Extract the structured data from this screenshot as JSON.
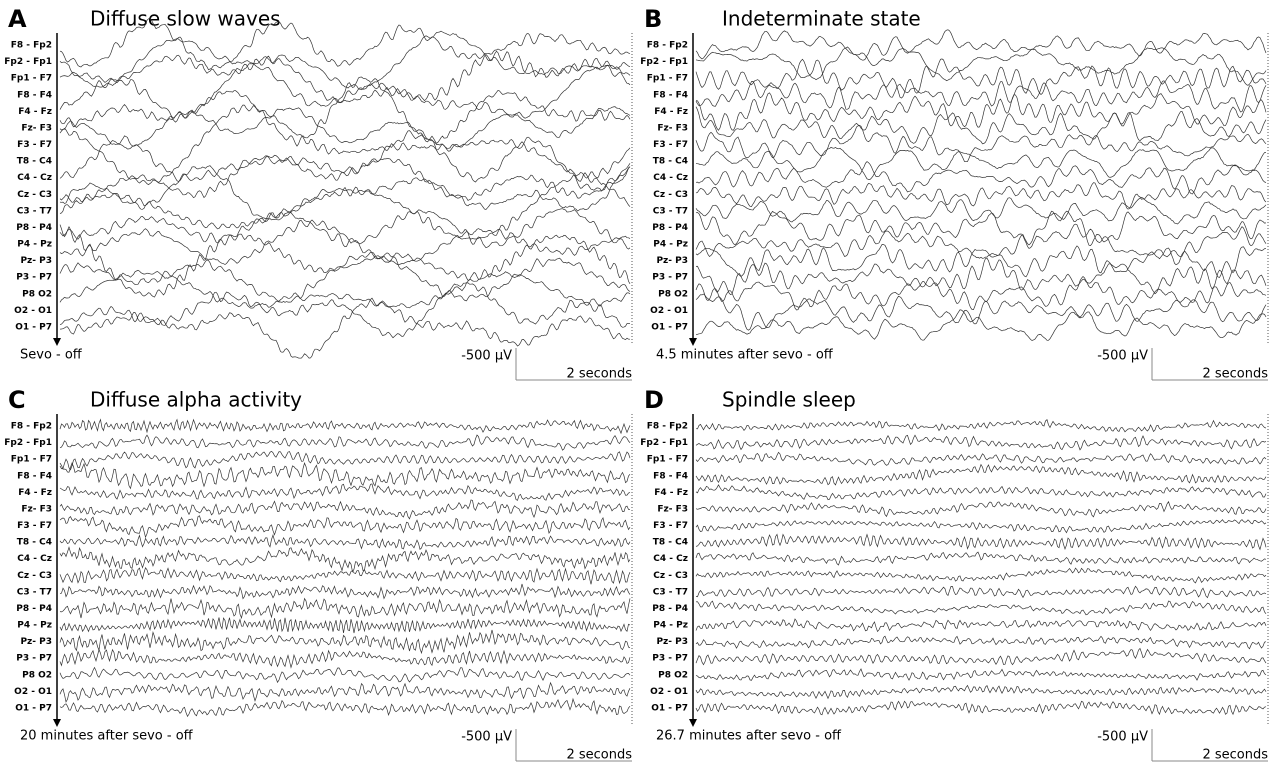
{
  "channels": [
    "F8 - Fp2",
    "Fp2 - Fp1",
    "Fp1 - F7",
    "F8 - F4",
    "F4 - Fz",
    "Fz- F3",
    "F3 - F7",
    "T8 - C4",
    "C4 - Cz",
    "Cz - C3",
    "C3 - T7",
    "P8 - P4",
    "P4 - Pz",
    "Pz- P3",
    "P3 - P7",
    "P8  O2",
    "O2 - O1",
    "O1 - P7"
  ],
  "scale": {
    "amplitude": "-500 µV",
    "time": "2 seconds"
  },
  "panels": [
    {
      "letter": "A",
      "title": "Diffuse slow waves",
      "caption": "Sevo - off"
    },
    {
      "letter": "B",
      "title": "Indeterminate state",
      "caption": "4.5 minutes after sevo - off"
    },
    {
      "letter": "C",
      "title": "Diffuse alpha activity",
      "caption": "20 minutes after sevo - off"
    },
    {
      "letter": "D",
      "title": "Spindle sleep",
      "caption": "26.7 minutes after sevo - off"
    }
  ]
}
